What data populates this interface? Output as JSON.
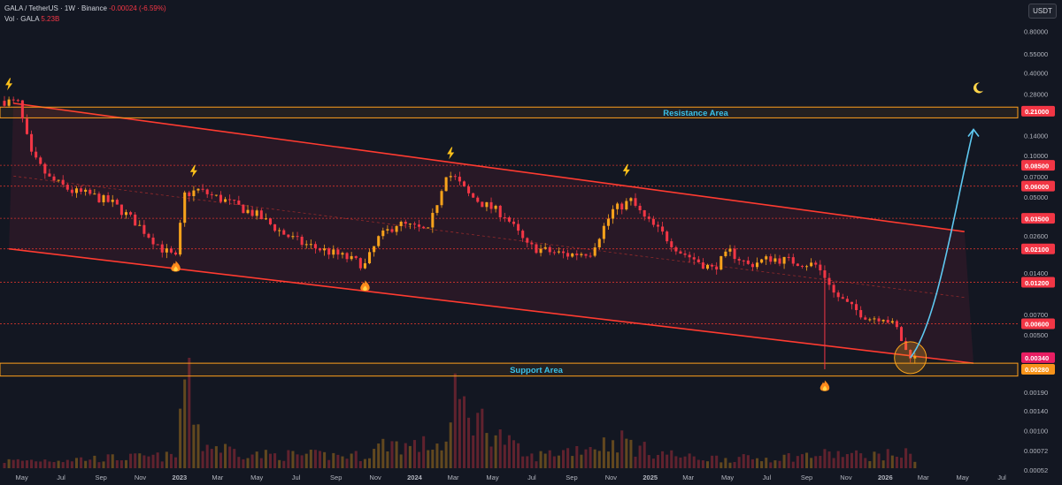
{
  "header": {
    "symbol_line": "GALA / TetherUS · 1W · Binance",
    "change": "-0.00024 (-6.59%)",
    "vol_label": "Vol · GALA",
    "vol_value": "5.23B"
  },
  "currency": "USDT",
  "colors": {
    "background": "#131722",
    "up": "#f7a21b",
    "down": "#f23645",
    "channel": "#ff3b30",
    "zone_border": "#ff9f1c",
    "zone_label": "#39c0e8",
    "arrow": "#5ec8f0",
    "level_badge": "#f23645",
    "support_badge": "#f7931a",
    "price_badge": "#e91e63"
  },
  "chart_data": {
    "type": "candlestick",
    "y_scale": "log",
    "y_range": [
      0.00062,
      1.2
    ],
    "y_ticks": [
      "0.80000",
      "0.55000",
      "0.40000",
      "0.28000",
      "0.14000",
      "0.10000",
      "0.07000",
      "0.05000",
      "0.02600",
      "0.01400",
      "0.00700",
      "0.00500",
      "0.00190",
      "0.00140",
      "0.00100",
      "0.00072",
      "0.00052"
    ],
    "y_tick_values": [
      0.8,
      0.55,
      0.4,
      0.28,
      0.14,
      0.1,
      0.07,
      0.05,
      0.026,
      0.014,
      0.007,
      0.005,
      0.0019,
      0.0014,
      0.001,
      0.00072,
      0.00052
    ],
    "x_ticks": [
      "May",
      "Jul",
      "Sep",
      "Nov",
      "2023",
      "Mar",
      "May",
      "Jul",
      "Sep",
      "Nov",
      "2024",
      "Mar",
      "May",
      "Jul",
      "Sep",
      "Nov",
      "2025",
      "Mar",
      "May",
      "Jul",
      "Sep",
      "Nov",
      "2026",
      "Mar",
      "May",
      "Jul"
    ],
    "x_tick_dates": [
      "2022-05-01",
      "2022-07-01",
      "2022-09-01",
      "2022-11-01",
      "2023-01-01",
      "2023-03-01",
      "2023-05-01",
      "2023-07-01",
      "2023-09-01",
      "2023-11-01",
      "2024-01-01",
      "2024-03-01",
      "2024-05-01",
      "2024-07-01",
      "2024-09-01",
      "2024-11-01",
      "2025-01-01",
      "2025-03-01",
      "2025-05-01",
      "2025-07-01",
      "2025-09-01",
      "2025-11-01",
      "2026-01-01",
      "2026-03-01",
      "2026-05-01",
      "2026-07-01"
    ],
    "price_path": {
      "dates": [
        "2022-04-04",
        "2022-04-25",
        "2022-05-02",
        "2022-05-16",
        "2022-06-13",
        "2022-07-18",
        "2022-08-15",
        "2022-09-19",
        "2022-10-24",
        "2022-12-05",
        "2022-12-26",
        "2023-01-09",
        "2023-01-30",
        "2023-03-13",
        "2023-05-01",
        "2023-06-12",
        "2023-07-10",
        "2023-08-21",
        "2023-09-18",
        "2023-10-16",
        "2023-11-06",
        "2023-12-04",
        "2024-01-01",
        "2024-01-22",
        "2024-02-19",
        "2024-03-04",
        "2024-03-25",
        "2024-04-15",
        "2024-05-20",
        "2024-06-24",
        "2024-07-29",
        "2024-08-26",
        "2024-09-30",
        "2024-11-04",
        "2024-12-02",
        "2024-12-23",
        "2025-01-20",
        "2025-02-17",
        "2025-03-17",
        "2025-04-07",
        "2025-05-05",
        "2025-06-02",
        "2025-07-07",
        "2025-08-11",
        "2025-09-15",
        "2025-10-06",
        "2025-10-13",
        "2025-11-10",
        "2025-12-08",
        "2025-12-29",
        "2026-01-19",
        "2026-02-02",
        "2026-02-16"
      ],
      "closes": [
        0.25,
        0.24,
        0.18,
        0.1,
        0.068,
        0.055,
        0.052,
        0.045,
        0.033,
        0.021,
        0.018,
        0.052,
        0.056,
        0.047,
        0.037,
        0.027,
        0.023,
        0.02,
        0.018,
        0.016,
        0.025,
        0.032,
        0.03,
        0.028,
        0.075,
        0.068,
        0.052,
        0.045,
        0.037,
        0.022,
        0.02,
        0.019,
        0.02,
        0.04,
        0.047,
        0.035,
        0.027,
        0.02,
        0.017,
        0.015,
        0.02,
        0.016,
        0.018,
        0.017,
        0.016,
        0.012,
        0.01,
        0.0078,
        0.0066,
        0.0068,
        0.0055,
        0.0038,
        0.0034
      ]
    },
    "volume_path": {
      "dates": [
        "2022-04-04",
        "2022-12-26",
        "2023-01-09",
        "2023-02-06",
        "2023-05-01",
        "2023-10-16",
        "2023-11-20",
        "2023-12-18",
        "2024-02-19",
        "2024-03-04",
        "2024-06-24",
        "2024-11-25",
        "2024-12-09",
        "2025-03-03",
        "2025-06-16",
        "2025-10-13",
        "2025-12-01",
        "2026-02-02",
        "2026-02-16"
      ],
      "values_b": [
        1.5,
        2.5,
        20,
        5,
        2.8,
        2.6,
        5.5,
        4.6,
        5,
        14,
        2.2,
        6,
        4.2,
        2.2,
        2,
        3,
        2.6,
        3,
        2.2
      ]
    },
    "levels": [
      {
        "value": 0.21,
        "label": "0.21000",
        "zone": "resistance"
      },
      {
        "value": 0.085,
        "label": "0.08500"
      },
      {
        "value": 0.06,
        "label": "0.06000"
      },
      {
        "value": 0.035,
        "label": "0.03500"
      },
      {
        "value": 0.021,
        "label": "0.02100"
      },
      {
        "value": 0.012,
        "label": "0.01200"
      },
      {
        "value": 0.006,
        "label": "0.00600"
      },
      {
        "value": 0.0034,
        "label": "0.00340",
        "current": true
      },
      {
        "value": 0.0028,
        "label": "0.00280",
        "zone": "support"
      }
    ],
    "zones": [
      {
        "name": "Resistance Area",
        "from": 0.188,
        "to": 0.225
      },
      {
        "name": "Support Area",
        "from": 0.0025,
        "to": 0.0031
      }
    ],
    "channel": {
      "upper": [
        [
          "2022-04-18",
          0.24
        ],
        [
          "2026-05-04",
          0.028
        ]
      ],
      "lower": [
        [
          "2022-04-11",
          0.021
        ],
        [
          "2026-05-18",
          0.0031
        ]
      ]
    },
    "projection_arrow": [
      [
        "2026-02-09",
        0.0034
      ],
      [
        "2026-03-23",
        0.006
      ],
      [
        "2026-04-20",
        0.045
      ],
      [
        "2026-05-18",
        0.155
      ]
    ],
    "highlight_circle": [
      "2026-02-09",
      0.0034
    ],
    "drop_line": {
      "date": "2025-09-29",
      "from": 0.0135,
      "to": 0.0028
    },
    "annotations": [
      {
        "icon": "lightning",
        "date": "2022-04-11",
        "value": 0.33
      },
      {
        "icon": "lightning",
        "date": "2023-01-23",
        "value": 0.077
      },
      {
        "icon": "lightning",
        "date": "2024-02-26",
        "value": 0.104
      },
      {
        "icon": "lightning",
        "date": "2024-11-25",
        "value": 0.078
      },
      {
        "icon": "fire",
        "date": "2022-12-26",
        "value": 0.0155
      },
      {
        "icon": "fire",
        "date": "2023-10-16",
        "value": 0.0112
      },
      {
        "icon": "fire",
        "date": "2025-09-29",
        "value": 0.0021
      },
      {
        "icon": "moon",
        "date": "2026-05-25",
        "value": 0.31
      }
    ]
  }
}
